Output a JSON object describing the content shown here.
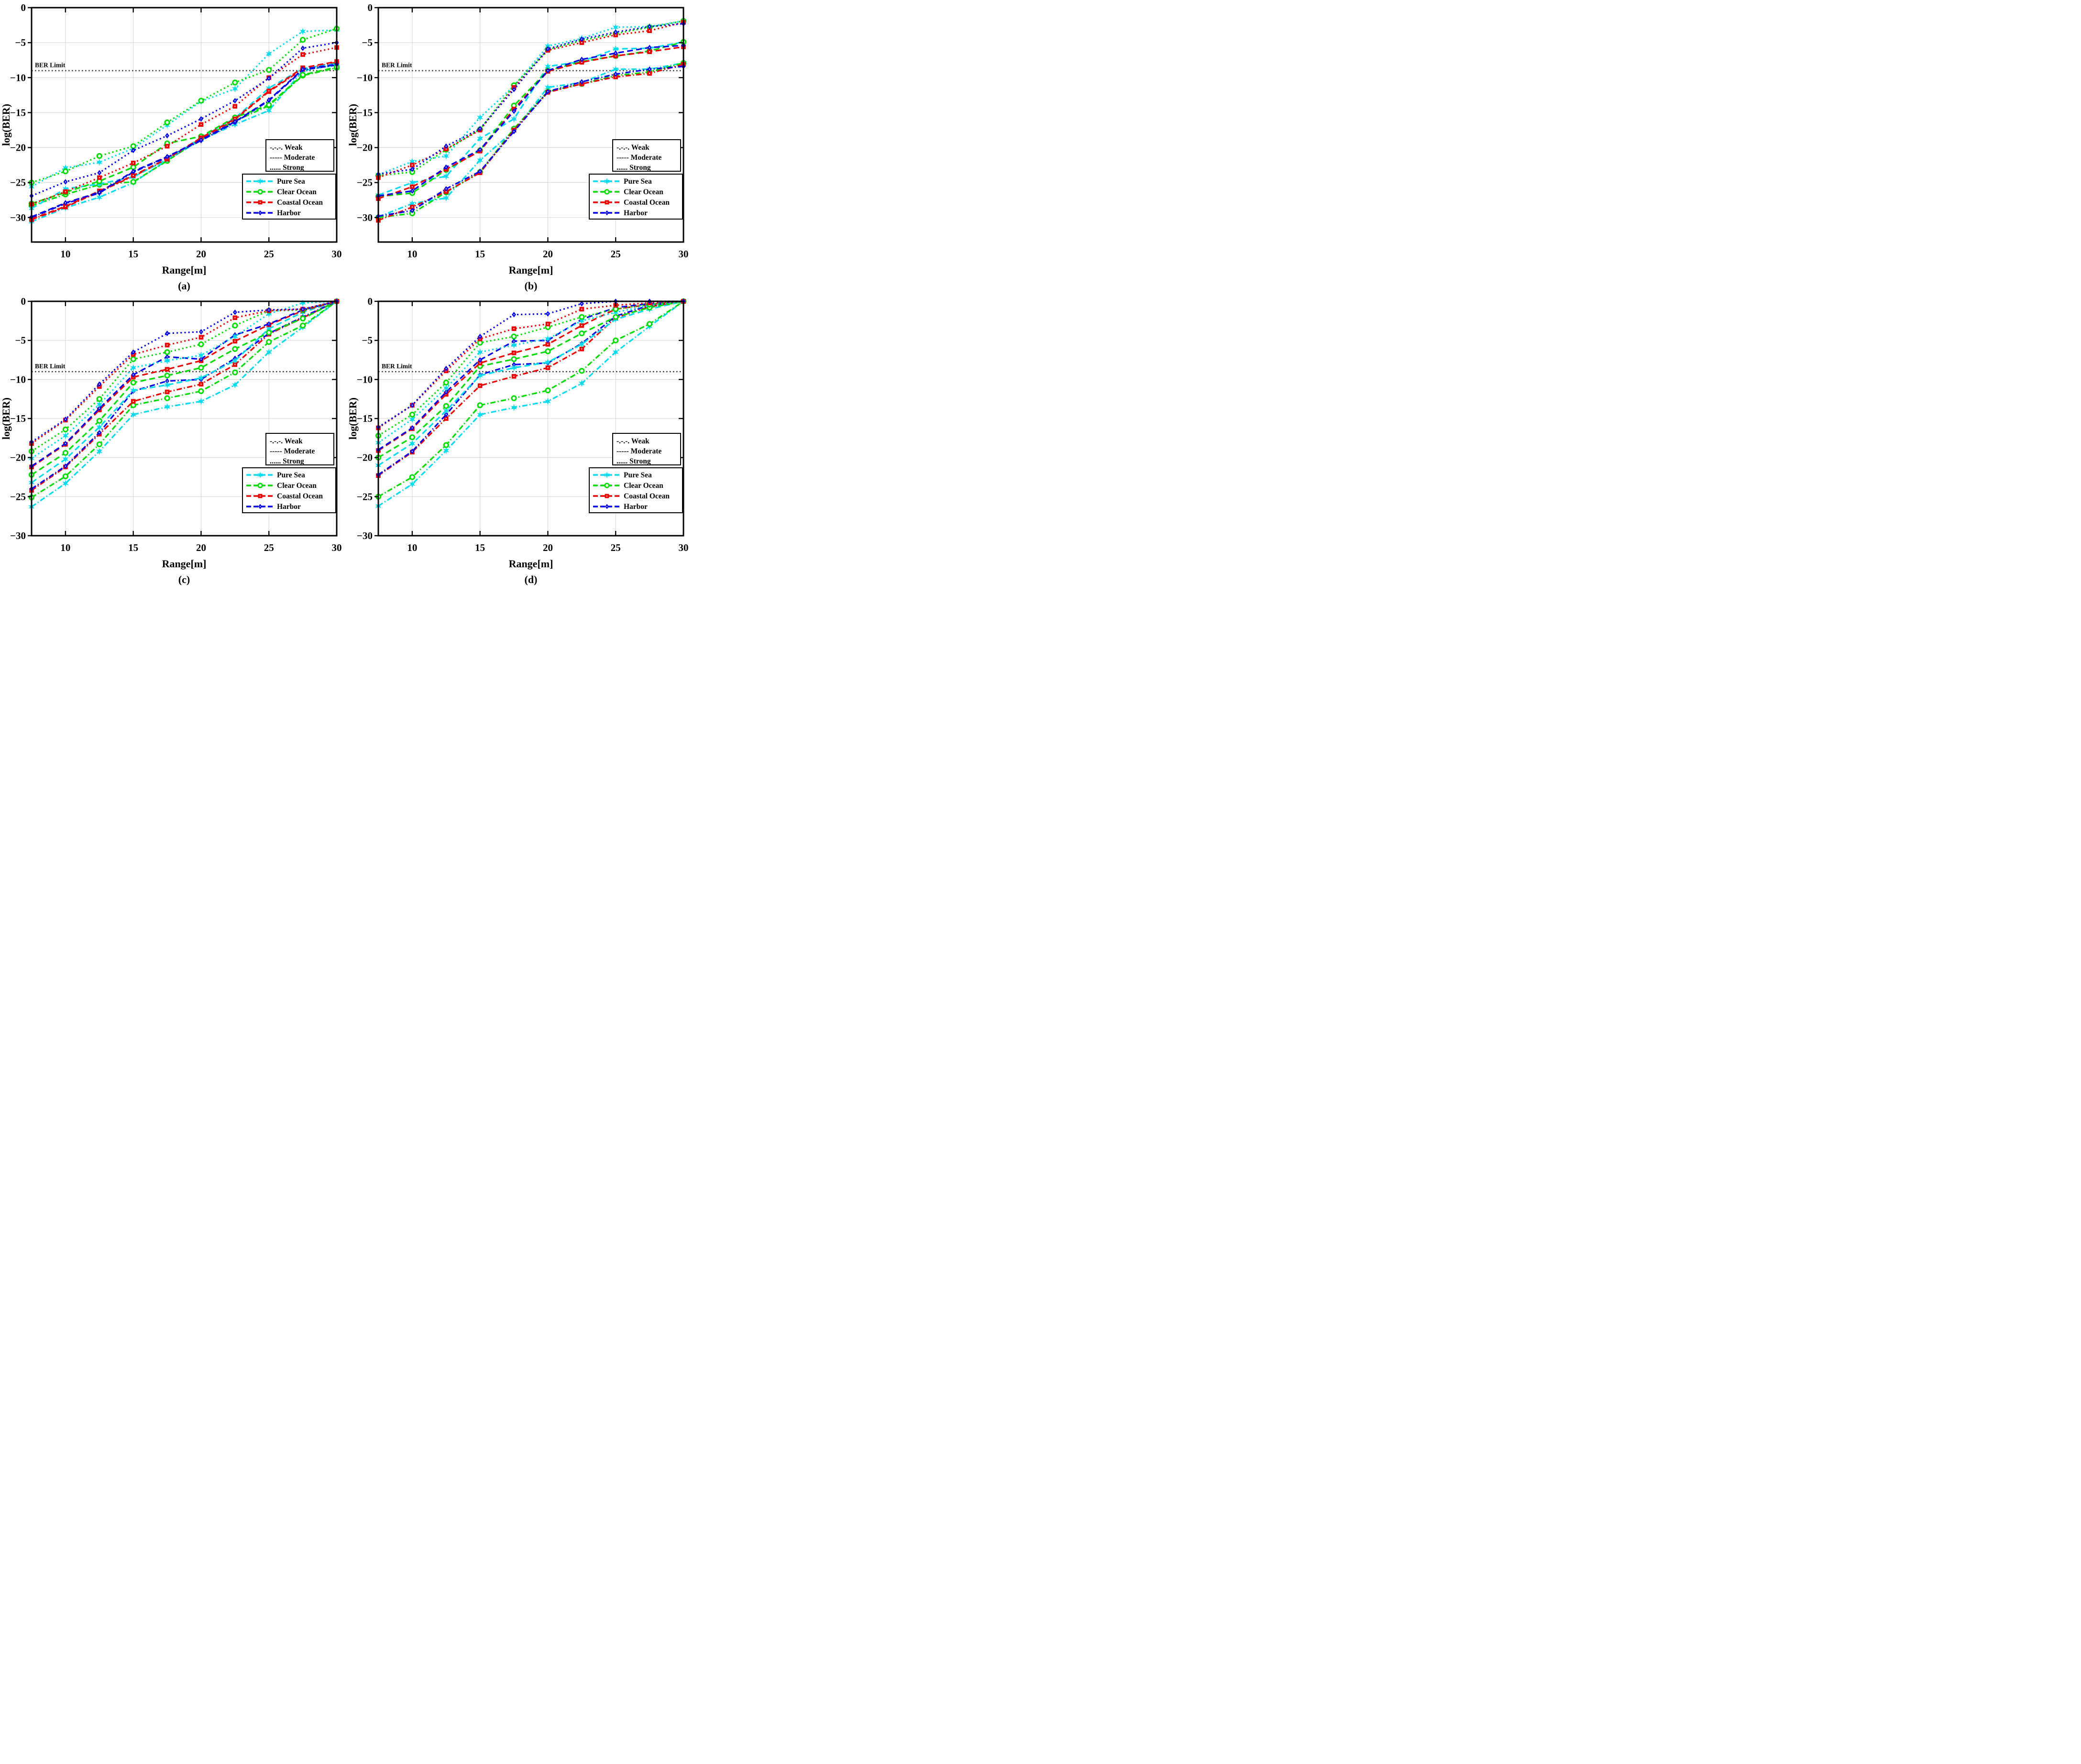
{
  "figure": {
    "x_label": "Range[m]",
    "y_label": "log(BER)",
    "x_range": [
      7.5,
      30
    ],
    "x_ticks": [
      10,
      15,
      20,
      25,
      30
    ],
    "grid": true,
    "legend_position": "lower-right",
    "ber_limit": {
      "label": "BER Limit",
      "value": -9,
      "color": "#3a3a3a"
    },
    "turbulence_legend": [
      {
        "glyph": "-.-.-.",
        "label": "Weak",
        "dash": "dashdot"
      },
      {
        "glyph": "-----",
        "label": "Moderate",
        "dash": "dashed"
      },
      {
        "glyph": "......",
        "label": "Strong",
        "dash": "dotted"
      }
    ],
    "water_legend": [
      {
        "label": "Pure Sea",
        "color": "#00DBEE",
        "marker": "star"
      },
      {
        "label": "Clear Ocean",
        "color": "#00DB00",
        "marker": "circle"
      },
      {
        "label": "Coastal Ocean",
        "color": "#F00000",
        "marker": "square"
      },
      {
        "label": "Harbor",
        "color": "#0000EE",
        "marker": "diamond"
      }
    ],
    "grid_color": "#d4d4d4",
    "axis_color": "#000000"
  },
  "chart_data": [
    {
      "type": "line",
      "label": "(a)",
      "ylim": [
        -33.5,
        0
      ],
      "y_ticks": [
        0,
        -5,
        -10,
        -15,
        -20,
        -25,
        -30
      ],
      "x": [
        7.5,
        10,
        12.5,
        15,
        17.5,
        20,
        22.5,
        25,
        27.5,
        30
      ],
      "series": [
        {
          "water": "Pure Sea",
          "turbulence": "Weak",
          "values": [
            -30.6,
            -28.6,
            -27.1,
            -25.0,
            -21.8,
            -18.9,
            -16.7,
            -14.7,
            -9.0,
            -8.2
          ]
        },
        {
          "water": "Clear Ocean",
          "turbulence": "Weak",
          "values": [
            -28.3,
            -26.7,
            -25.3,
            -24.9,
            -21.9,
            -18.7,
            -16.2,
            -14.0,
            -9.7,
            -8.6
          ]
        },
        {
          "water": "Coastal Ocean",
          "turbulence": "Weak",
          "values": [
            -30.3,
            -28.5,
            -26.3,
            -24.1,
            -21.7,
            -18.7,
            -16.0,
            -12.0,
            -8.8,
            -7.8
          ]
        },
        {
          "water": "Harbor",
          "turbulence": "Weak",
          "values": [
            -30.0,
            -28.0,
            -26.5,
            -23.5,
            -21.4,
            -19.0,
            -16.4,
            -13.3,
            -8.9,
            -8.2
          ]
        },
        {
          "water": "Pure Sea",
          "turbulence": "Moderate",
          "values": [
            -28.7,
            -25.9,
            -25.2,
            -24.2,
            -21.7,
            -18.6,
            -15.8,
            -11.5,
            -8.7,
            -8.0
          ]
        },
        {
          "water": "Clear Ocean",
          "turbulence": "Moderate",
          "values": [
            -28.0,
            -26.4,
            -24.8,
            -22.8,
            -19.4,
            -18.4,
            -15.7,
            -13.9,
            -9.6,
            -8.5
          ]
        },
        {
          "water": "Coastal Ocean",
          "turbulence": "Moderate",
          "values": [
            -30.2,
            -28.4,
            -26.2,
            -24.0,
            -21.6,
            -18.6,
            -15.9,
            -11.9,
            -8.6,
            -7.7
          ]
        },
        {
          "water": "Harbor",
          "turbulence": "Moderate",
          "values": [
            -29.9,
            -27.9,
            -26.4,
            -23.4,
            -21.3,
            -18.9,
            -16.3,
            -13.2,
            -8.8,
            -8.1
          ]
        },
        {
          "water": "Pure Sea",
          "turbulence": "Strong",
          "values": [
            -25.6,
            -22.9,
            -22.1,
            -20.1,
            -16.8,
            -13.4,
            -11.6,
            -6.6,
            -3.4,
            -3.2
          ]
        },
        {
          "water": "Clear Ocean",
          "turbulence": "Strong",
          "values": [
            -25.0,
            -23.4,
            -21.2,
            -19.8,
            -16.4,
            -13.3,
            -10.7,
            -8.9,
            -4.6,
            -3.0
          ]
        },
        {
          "water": "Coastal Ocean",
          "turbulence": "Strong",
          "values": [
            -28.1,
            -26.3,
            -24.3,
            -22.2,
            -19.8,
            -16.7,
            -14.1,
            -10.0,
            -6.7,
            -5.7
          ]
        },
        {
          "water": "Harbor",
          "turbulence": "Strong",
          "values": [
            -26.9,
            -24.9,
            -23.6,
            -20.4,
            -18.3,
            -15.9,
            -13.3,
            -10.1,
            -5.8,
            -5.0
          ]
        }
      ]
    },
    {
      "type": "line",
      "label": "(b)",
      "ylim": [
        -33.5,
        0
      ],
      "y_ticks": [
        0,
        -5,
        -10,
        -15,
        -20,
        -25,
        -30
      ],
      "x": [
        7.5,
        10,
        12.5,
        15,
        17.5,
        20,
        22.5,
        25,
        27.5,
        30
      ],
      "series": [
        {
          "water": "Pure Sea",
          "turbulence": "Weak",
          "values": [
            -29.9,
            -28.0,
            -27.2,
            -21.8,
            -17.6,
            -11.4,
            -10.7,
            -8.8,
            -8.8,
            -7.9
          ]
        },
        {
          "water": "Clear Ocean",
          "turbulence": "Weak",
          "values": [
            -30.0,
            -29.4,
            -26.4,
            -23.5,
            -17.3,
            -12.0,
            -10.9,
            -9.7,
            -9.2,
            -7.9
          ]
        },
        {
          "water": "Coastal Ocean",
          "turbulence": "Weak",
          "values": [
            -30.4,
            -28.5,
            -26.3,
            -23.6,
            -17.5,
            -12.1,
            -10.9,
            -9.9,
            -9.4,
            -8.1
          ]
        },
        {
          "water": "Harbor",
          "turbulence": "Weak",
          "values": [
            -29.8,
            -29.0,
            -25.9,
            -23.4,
            -17.7,
            -12.0,
            -10.6,
            -9.5,
            -8.8,
            -8.4
          ]
        },
        {
          "water": "Pure Sea",
          "turbulence": "Moderate",
          "values": [
            -26.8,
            -25.0,
            -24.1,
            -18.7,
            -15.9,
            -8.4,
            -7.7,
            -5.9,
            -5.8,
            -4.9
          ]
        },
        {
          "water": "Clear Ocean",
          "turbulence": "Moderate",
          "values": [
            -27.0,
            -26.5,
            -23.2,
            -20.4,
            -14.0,
            -9.0,
            -7.7,
            -6.9,
            -6.2,
            -4.9
          ]
        },
        {
          "water": "Coastal Ocean",
          "turbulence": "Moderate",
          "values": [
            -27.3,
            -25.6,
            -23.1,
            -20.5,
            -14.5,
            -9.1,
            -7.8,
            -6.9,
            -6.3,
            -5.6
          ]
        },
        {
          "water": "Harbor",
          "turbulence": "Moderate",
          "values": [
            -26.9,
            -26.2,
            -22.8,
            -20.3,
            -14.8,
            -9.0,
            -7.4,
            -6.5,
            -5.7,
            -5.4
          ]
        },
        {
          "water": "Pure Sea",
          "turbulence": "Strong",
          "values": [
            -23.9,
            -22.0,
            -21.2,
            -15.7,
            -11.2,
            -5.5,
            -4.4,
            -2.8,
            -2.7,
            -1.9
          ]
        },
        {
          "water": "Clear Ocean",
          "turbulence": "Strong",
          "values": [
            -24.0,
            -23.5,
            -20.3,
            -17.4,
            -11.1,
            -6.0,
            -4.7,
            -3.7,
            -2.8,
            -1.9
          ]
        },
        {
          "water": "Coastal Ocean",
          "turbulence": "Strong",
          "values": [
            -24.3,
            -22.5,
            -20.2,
            -17.5,
            -11.4,
            -6.1,
            -5.0,
            -3.9,
            -3.3,
            -2.1
          ]
        },
        {
          "water": "Harbor",
          "turbulence": "Strong",
          "values": [
            -23.8,
            -23.1,
            -19.8,
            -17.3,
            -11.7,
            -5.9,
            -4.5,
            -3.5,
            -2.7,
            -2.3
          ]
        }
      ]
    },
    {
      "type": "line",
      "label": "(c)",
      "ylim": [
        -30,
        0
      ],
      "y_ticks": [
        0,
        -5,
        -10,
        -15,
        -20,
        -25,
        -30
      ],
      "x": [
        7.5,
        10,
        12.5,
        15,
        17.5,
        20,
        22.5,
        25,
        27.5,
        30
      ],
      "series": [
        {
          "water": "Pure Sea",
          "turbulence": "Weak",
          "values": [
            -26.3,
            -23.3,
            -19.2,
            -14.5,
            -13.5,
            -12.8,
            -10.7,
            -6.5,
            -3.3,
            0
          ]
        },
        {
          "water": "Clear Ocean",
          "turbulence": "Weak",
          "values": [
            -25.1,
            -22.4,
            -18.3,
            -13.3,
            -12.4,
            -11.5,
            -9.1,
            -5.2,
            -3.1,
            0
          ]
        },
        {
          "water": "Coastal Ocean",
          "turbulence": "Weak",
          "values": [
            -24.2,
            -21.2,
            -17.0,
            -12.8,
            -11.6,
            -10.6,
            -8.1,
            -4.2,
            -2.1,
            0
          ]
        },
        {
          "water": "Harbor",
          "turbulence": "Weak",
          "values": [
            -24.0,
            -21.1,
            -16.8,
            -11.5,
            -10.2,
            -10.0,
            -7.3,
            -4.1,
            -2.0,
            0
          ]
        },
        {
          "water": "Pure Sea",
          "turbulence": "Moderate",
          "values": [
            -23.2,
            -20.2,
            -16.1,
            -11.4,
            -10.7,
            -9.8,
            -7.6,
            -3.5,
            -1.4,
            0
          ]
        },
        {
          "water": "Clear Ocean",
          "turbulence": "Moderate",
          "values": [
            -22.2,
            -19.4,
            -15.3,
            -10.4,
            -9.5,
            -8.5,
            -6.1,
            -4.0,
            -2.2,
            0
          ]
        },
        {
          "water": "Coastal Ocean",
          "turbulence": "Moderate",
          "values": [
            -21.2,
            -18.3,
            -13.9,
            -9.7,
            -8.7,
            -7.6,
            -5.1,
            -3.0,
            -1.2,
            0
          ]
        },
        {
          "water": "Harbor",
          "turbulence": "Moderate",
          "values": [
            -21.1,
            -18.2,
            -13.7,
            -9.4,
            -7.1,
            -7.4,
            -4.3,
            -2.9,
            -1.1,
            0
          ]
        },
        {
          "water": "Pure Sea",
          "turbulence": "Strong",
          "values": [
            -20.1,
            -17.2,
            -13.2,
            -8.5,
            -7.6,
            -6.9,
            -4.5,
            -1.6,
            -0.2,
            0
          ]
        },
        {
          "water": "Clear Ocean",
          "turbulence": "Strong",
          "values": [
            -19.2,
            -16.4,
            -12.5,
            -7.4,
            -6.5,
            -5.5,
            -3.1,
            -1.2,
            -1.1,
            0
          ]
        },
        {
          "water": "Coastal Ocean",
          "turbulence": "Strong",
          "values": [
            -18.2,
            -15.2,
            -10.9,
            -6.8,
            -5.6,
            -4.6,
            -2.1,
            -1.2,
            -1.0,
            0
          ]
        },
        {
          "water": "Harbor",
          "turbulence": "Strong",
          "values": [
            -18.0,
            -15.1,
            -10.6,
            -6.5,
            -4.1,
            -3.9,
            -1.4,
            -1.1,
            -1.0,
            0
          ]
        }
      ]
    },
    {
      "type": "line",
      "label": "(d)",
      "ylim": [
        -30,
        0
      ],
      "y_ticks": [
        0,
        -5,
        -10,
        -15,
        -20,
        -25,
        -30
      ],
      "x": [
        7.5,
        10,
        12.5,
        15,
        17.5,
        20,
        22.5,
        25,
        27.5,
        30
      ],
      "series": [
        {
          "water": "Pure Sea",
          "turbulence": "Weak",
          "values": [
            -26.2,
            -23.4,
            -19.1,
            -14.5,
            -13.6,
            -12.8,
            -10.5,
            -6.5,
            -3.2,
            0
          ]
        },
        {
          "water": "Clear Ocean",
          "turbulence": "Weak",
          "values": [
            -25.0,
            -22.5,
            -18.4,
            -13.3,
            -12.4,
            -11.4,
            -8.9,
            -5.0,
            -2.9,
            0
          ]
        },
        {
          "water": "Coastal Ocean",
          "turbulence": "Weak",
          "values": [
            -22.3,
            -19.3,
            -15.0,
            -10.8,
            -9.6,
            -8.5,
            -6.1,
            -2.1,
            -0.7,
            0
          ]
        },
        {
          "water": "Harbor",
          "turbulence": "Weak",
          "values": [
            -22.2,
            -19.2,
            -14.5,
            -9.4,
            -8.1,
            -7.9,
            -5.4,
            -1.9,
            -0.5,
            0
          ]
        },
        {
          "water": "Pure Sea",
          "turbulence": "Moderate",
          "values": [
            -21.0,
            -18.2,
            -14.0,
            -9.5,
            -8.5,
            -7.8,
            -5.5,
            -2.3,
            -1.0,
            0
          ]
        },
        {
          "water": "Clear Ocean",
          "turbulence": "Moderate",
          "values": [
            -20.0,
            -17.4,
            -13.4,
            -8.3,
            -7.4,
            -6.4,
            -4.1,
            -2.0,
            -0.8,
            0
          ]
        },
        {
          "water": "Coastal Ocean",
          "turbulence": "Moderate",
          "values": [
            -19.1,
            -16.3,
            -11.9,
            -7.9,
            -6.6,
            -5.5,
            -3.1,
            -1.0,
            -0.4,
            0
          ]
        },
        {
          "water": "Harbor",
          "turbulence": "Moderate",
          "values": [
            -19.0,
            -16.2,
            -11.6,
            -7.5,
            -5.1,
            -5.0,
            -2.3,
            -0.8,
            -0.3,
            0
          ]
        },
        {
          "water": "Pure Sea",
          "turbulence": "Strong",
          "values": [
            -18.1,
            -15.1,
            -11.1,
            -6.5,
            -5.6,
            -4.8,
            -2.5,
            -1.4,
            -0.5,
            0
          ]
        },
        {
          "water": "Clear Ocean",
          "turbulence": "Strong",
          "values": [
            -17.2,
            -14.5,
            -10.4,
            -5.3,
            -4.5,
            -3.3,
            -2.0,
            -1.0,
            -0.4,
            0
          ]
        },
        {
          "water": "Coastal Ocean",
          "turbulence": "Strong",
          "values": [
            -16.2,
            -13.3,
            -8.9,
            -4.8,
            -3.5,
            -2.9,
            -1.0,
            -0.5,
            -0.2,
            0
          ]
        },
        {
          "water": "Harbor",
          "turbulence": "Strong",
          "values": [
            -16.1,
            -13.3,
            -8.6,
            -4.5,
            -1.7,
            -1.6,
            -0.3,
            0,
            0,
            0
          ]
        }
      ]
    }
  ]
}
